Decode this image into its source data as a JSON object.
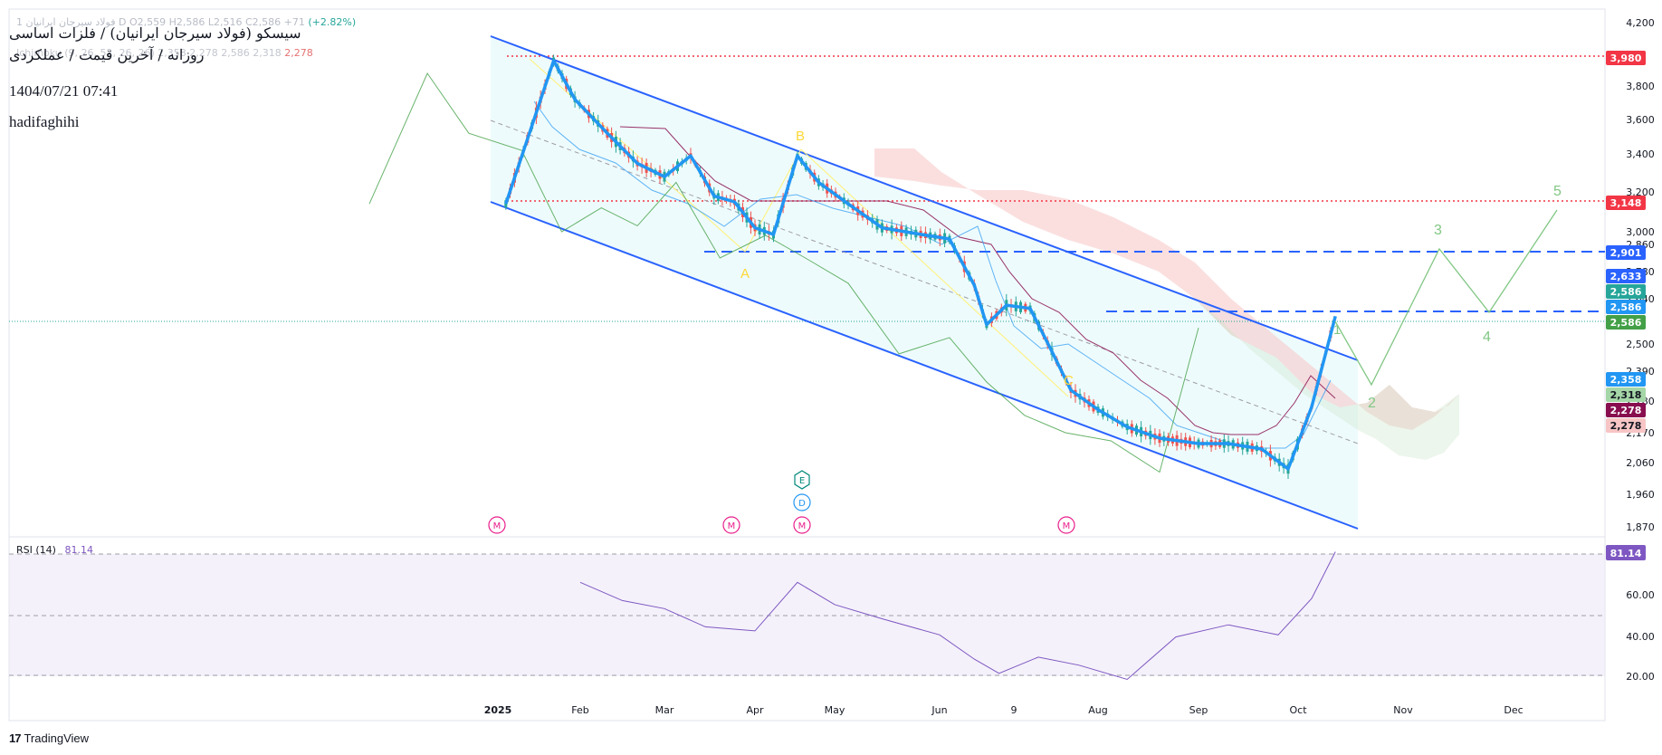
{
  "header": {
    "ohlc_text": "1 فولاد سیرجان ایرانیان D  O2,559  H2,586  L2,516  C2,586  +71",
    "ohlc_change": "(+2.82%)",
    "ichimoku_text": "Ichimoku (9, 26, 52, 26, 26)  2,358  2,278  2,586  2,318",
    "ichimoku_last": "2,278",
    "title_line1": "سیسکو (فولاد سیرجان ایرانیان) / فلزات اساسی",
    "title_line2": "روزانه / آخرین قیمت / عملکردی",
    "timestamp": "1404/07/21 07:41",
    "author": "hadifaghihi"
  },
  "rsi_panel": {
    "label": "RSI (14)",
    "value_text": "81.14"
  },
  "brand": {
    "name": "TradingView",
    "logo_text": "17"
  },
  "colors": {
    "up": "#26a69a",
    "down": "#ef5350",
    "channel": "#2962ff",
    "accent_blue": "#2196f3",
    "rsi": "#7e57c2",
    "wave": "#81c784",
    "abc": "#fdd835",
    "red_dotted": "#f23645",
    "kumo_bear": "#f7c5c5",
    "kumo_bull": "#c8e6c9",
    "kijun": "#880e4f"
  },
  "chart_data": [
    {
      "type": "line",
      "title": "سیسکو (فولاد سیرجان ایرانیان) / فلزات اساسی",
      "x_axis_labels": [
        "2025",
        "Feb",
        "Mar",
        "Apr",
        "May",
        "Jun",
        "9",
        "Aug",
        "Sep",
        "Oct",
        "Nov",
        "Dec"
      ],
      "y_axis_ticks": [
        1870,
        1960,
        2060,
        2170,
        2280,
        2390,
        2500,
        2640,
        2780,
        2860,
        3000,
        3200,
        3400,
        3600,
        3800,
        4200
      ],
      "y_tick_labels": [
        "1,870",
        "1,960",
        "2,060",
        "2,170",
        "2,280",
        "2,390",
        "2,500",
        "2,640",
        "2,780",
        "2,860",
        "3,000",
        "3,200",
        "3,400",
        "3,600",
        "3,800",
        "4,200"
      ],
      "ylim": [
        1810,
        4250
      ],
      "series": [
        {
          "name": "Price",
          "x": [
            "2025-01-04",
            "2025-01-22",
            "2025-01-30",
            "2025-02-10",
            "2025-02-20",
            "2025-03-01",
            "2025-03-10",
            "2025-03-18",
            "2025-03-25",
            "2025-04-01",
            "2025-04-08",
            "2025-04-17",
            "2025-04-25",
            "2025-05-05",
            "2025-05-15",
            "2025-05-25",
            "2025-06-05",
            "2025-06-15",
            "2025-06-20",
            "2025-06-28",
            "2025-07-07",
            "2025-07-15",
            "2025-07-22",
            "2025-08-01",
            "2025-08-10",
            "2025-08-20",
            "2025-09-01",
            "2025-09-10",
            "2025-09-20",
            "2025-09-28",
            "2025-10-05",
            "2025-10-12"
          ],
          "y": [
            3140,
            3960,
            3720,
            3520,
            3350,
            3280,
            3390,
            3180,
            3150,
            3020,
            2970,
            3390,
            3250,
            3140,
            3020,
            2980,
            2920,
            2710,
            2560,
            2620,
            2610,
            2470,
            2320,
            2250,
            2190,
            2150,
            2130,
            2130,
            2110,
            2040,
            2260,
            2586
          ]
        },
        {
          "name": "Lagging span",
          "x": [
            "2024-12-01",
            "2024-12-15",
            "2024-12-25",
            "2025-01-10",
            "2025-01-25",
            "2025-02-08",
            "2025-02-20",
            "2025-03-05",
            "2025-03-20",
            "2025-04-05",
            "2025-04-20",
            "2025-05-05",
            "2025-05-20",
            "2025-06-05",
            "2025-06-20",
            "2025-07-05",
            "2025-07-20",
            "2025-08-05",
            "2025-08-20",
            "2025-09-01"
          ],
          "y": [
            3140,
            3880,
            3520,
            3420,
            3000,
            3120,
            3030,
            3250,
            2820,
            2960,
            2820,
            2720,
            2460,
            2520,
            2350,
            2230,
            2170,
            2140,
            2030,
            2550
          ]
        },
        {
          "name": "RSI (14)",
          "x": [
            "2025-02-01",
            "2025-02-15",
            "2025-03-01",
            "2025-03-15",
            "2025-04-01",
            "2025-04-17",
            "2025-05-01",
            "2025-05-15",
            "2025-06-01",
            "2025-06-15",
            "2025-06-25",
            "2025-07-10",
            "2025-07-25",
            "2025-08-10",
            "2025-08-25",
            "2025-09-10",
            "2025-09-25",
            "2025-10-05",
            "2025-10-12"
          ],
          "y": [
            66,
            57,
            53,
            44,
            42,
            66,
            55,
            48,
            40,
            28,
            21,
            29,
            25,
            18,
            39,
            45,
            40,
            58,
            81.14
          ]
        }
      ],
      "wave_labels": [
        "A",
        "B",
        "C",
        "1",
        "2",
        "3",
        "4",
        "5"
      ],
      "event_markers": [
        "M",
        "M",
        "M",
        "M",
        "E",
        "D"
      ],
      "price_tags": [
        {
          "label": "3,980",
          "color": "#f23645"
        },
        {
          "label": "3,148",
          "color": "#f23645"
        },
        {
          "label": "2,901",
          "color": "#2962ff"
        },
        {
          "label": "2,633",
          "color": "#2962ff"
        },
        {
          "label": "2,586",
          "color": "#26a69a"
        },
        {
          "label": "2,586",
          "color": "#2196f3"
        },
        {
          "label": "2,586",
          "color": "#43a047"
        },
        {
          "label": "2,358",
          "color": "#2196f3"
        },
        {
          "label": "2,318",
          "color": "#a5d6a7"
        },
        {
          "label": "2,278",
          "color": "#880e4f"
        },
        {
          "label": "2,278",
          "color": "#f7c5c5"
        }
      ],
      "rsi_ticks": [
        "20.00",
        "40.00",
        "60.00"
      ],
      "rsi_tag": "81.14",
      "grid": false
    }
  ]
}
